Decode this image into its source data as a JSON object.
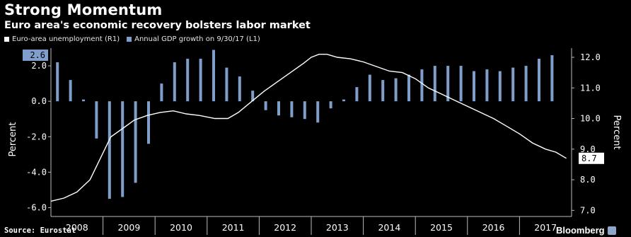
{
  "header": {
    "title": "Strong Momentum",
    "subtitle": "Euro area's economic recovery bolsters labor market"
  },
  "legend": [
    {
      "label": "Euro-area unemployment (R1)",
      "color": "#ffffff"
    },
    {
      "label": "Annual GDP growth on 9/30/17 (L1)",
      "color": "#7f9ecb"
    }
  ],
  "footer": {
    "source": "Source: Eurostat",
    "brand": "Bloomberg"
  },
  "chart_data": {
    "type": "bar+line",
    "xlabel": "",
    "ylabel_left": "Percent",
    "ylabel_right": "Percent",
    "left_axis": {
      "min": -6.5,
      "max": 3.0,
      "ticks": [
        "2.0",
        "0.0",
        "-2.0",
        "-4.0",
        "-6.0"
      ],
      "tick_values": [
        2,
        0,
        -2,
        -4,
        -6
      ]
    },
    "right_axis": {
      "min": 6.8,
      "max": 12.3,
      "ticks": [
        "12.0",
        "11.0",
        "10.0",
        "9.0",
        "8.0",
        "7.0"
      ],
      "tick_values": [
        12,
        11,
        10,
        9,
        8,
        7
      ]
    },
    "years": [
      "2008",
      "2009",
      "2010",
      "2011",
      "2012",
      "2013",
      "2014",
      "2015",
      "2016",
      "2017"
    ],
    "x_range": [
      2008.0,
      2018.0
    ],
    "gdp_series": {
      "name": "Annual GDP growth on 9/30/17 (L1)",
      "color": "#7f9ecb",
      "points": [
        {
          "t": 2008.125,
          "v": 2.2
        },
        {
          "t": 2008.375,
          "v": 1.2
        },
        {
          "t": 2008.625,
          "v": 0.1
        },
        {
          "t": 2008.875,
          "v": -2.1
        },
        {
          "t": 2009.125,
          "v": -5.5
        },
        {
          "t": 2009.375,
          "v": -5.4
        },
        {
          "t": 2009.625,
          "v": -4.6
        },
        {
          "t": 2009.875,
          "v": -2.4
        },
        {
          "t": 2010.125,
          "v": 1.0
        },
        {
          "t": 2010.375,
          "v": 2.2
        },
        {
          "t": 2010.625,
          "v": 2.4
        },
        {
          "t": 2010.875,
          "v": 2.4
        },
        {
          "t": 2011.125,
          "v": 2.9
        },
        {
          "t": 2011.375,
          "v": 1.9
        },
        {
          "t": 2011.625,
          "v": 1.4
        },
        {
          "t": 2011.875,
          "v": 0.6
        },
        {
          "t": 2012.125,
          "v": -0.5
        },
        {
          "t": 2012.375,
          "v": -0.8
        },
        {
          "t": 2012.625,
          "v": -0.9
        },
        {
          "t": 2012.875,
          "v": -1.0
        },
        {
          "t": 2013.125,
          "v": -1.2
        },
        {
          "t": 2013.375,
          "v": -0.4
        },
        {
          "t": 2013.625,
          "v": 0.1
        },
        {
          "t": 2013.875,
          "v": 0.8
        },
        {
          "t": 2014.125,
          "v": 1.5
        },
        {
          "t": 2014.375,
          "v": 1.2
        },
        {
          "t": 2014.625,
          "v": 1.3
        },
        {
          "t": 2014.875,
          "v": 1.5
        },
        {
          "t": 2015.125,
          "v": 1.8
        },
        {
          "t": 2015.375,
          "v": 2.0
        },
        {
          "t": 2015.625,
          "v": 2.0
        },
        {
          "t": 2015.875,
          "v": 2.0
        },
        {
          "t": 2016.125,
          "v": 1.7
        },
        {
          "t": 2016.375,
          "v": 1.8
        },
        {
          "t": 2016.625,
          "v": 1.7
        },
        {
          "t": 2016.875,
          "v": 1.9
        },
        {
          "t": 2017.125,
          "v": 2.0
        },
        {
          "t": 2017.375,
          "v": 2.4
        },
        {
          "t": 2017.625,
          "v": 2.6
        }
      ],
      "last_value_label": "2.6"
    },
    "unemployment_series": {
      "name": "Euro-area unemployment (R1)",
      "color": "#ffffff",
      "points": [
        {
          "t": 2008.0,
          "v": 7.3
        },
        {
          "t": 2008.25,
          "v": 7.4
        },
        {
          "t": 2008.5,
          "v": 7.6
        },
        {
          "t": 2008.75,
          "v": 8.0
        },
        {
          "t": 2008.95,
          "v": 8.7
        },
        {
          "t": 2009.15,
          "v": 9.4
        },
        {
          "t": 2009.4,
          "v": 9.7
        },
        {
          "t": 2009.6,
          "v": 9.95
        },
        {
          "t": 2009.85,
          "v": 10.1
        },
        {
          "t": 2010.1,
          "v": 10.2
        },
        {
          "t": 2010.35,
          "v": 10.25
        },
        {
          "t": 2010.6,
          "v": 10.15
        },
        {
          "t": 2010.85,
          "v": 10.1
        },
        {
          "t": 2011.15,
          "v": 10.0
        },
        {
          "t": 2011.4,
          "v": 10.0
        },
        {
          "t": 2011.6,
          "v": 10.2
        },
        {
          "t": 2011.85,
          "v": 10.55
        },
        {
          "t": 2012.1,
          "v": 10.9
        },
        {
          "t": 2012.35,
          "v": 11.2
        },
        {
          "t": 2012.6,
          "v": 11.5
        },
        {
          "t": 2012.85,
          "v": 11.8
        },
        {
          "t": 2013.0,
          "v": 12.0
        },
        {
          "t": 2013.15,
          "v": 12.1
        },
        {
          "t": 2013.3,
          "v": 12.1
        },
        {
          "t": 2013.5,
          "v": 12.0
        },
        {
          "t": 2013.75,
          "v": 11.95
        },
        {
          "t": 2014.0,
          "v": 11.85
        },
        {
          "t": 2014.25,
          "v": 11.7
        },
        {
          "t": 2014.5,
          "v": 11.55
        },
        {
          "t": 2014.75,
          "v": 11.5
        },
        {
          "t": 2015.0,
          "v": 11.3
        },
        {
          "t": 2015.25,
          "v": 11.0
        },
        {
          "t": 2015.5,
          "v": 10.8
        },
        {
          "t": 2015.75,
          "v": 10.6
        },
        {
          "t": 2016.0,
          "v": 10.4
        },
        {
          "t": 2016.25,
          "v": 10.2
        },
        {
          "t": 2016.5,
          "v": 10.0
        },
        {
          "t": 2016.75,
          "v": 9.75
        },
        {
          "t": 2017.0,
          "v": 9.5
        },
        {
          "t": 2017.25,
          "v": 9.2
        },
        {
          "t": 2017.5,
          "v": 9.0
        },
        {
          "t": 2017.7,
          "v": 8.9
        },
        {
          "t": 2017.9,
          "v": 8.7
        }
      ],
      "last_value_label": "8.7"
    },
    "grid": false,
    "legend_position": "top-left"
  }
}
